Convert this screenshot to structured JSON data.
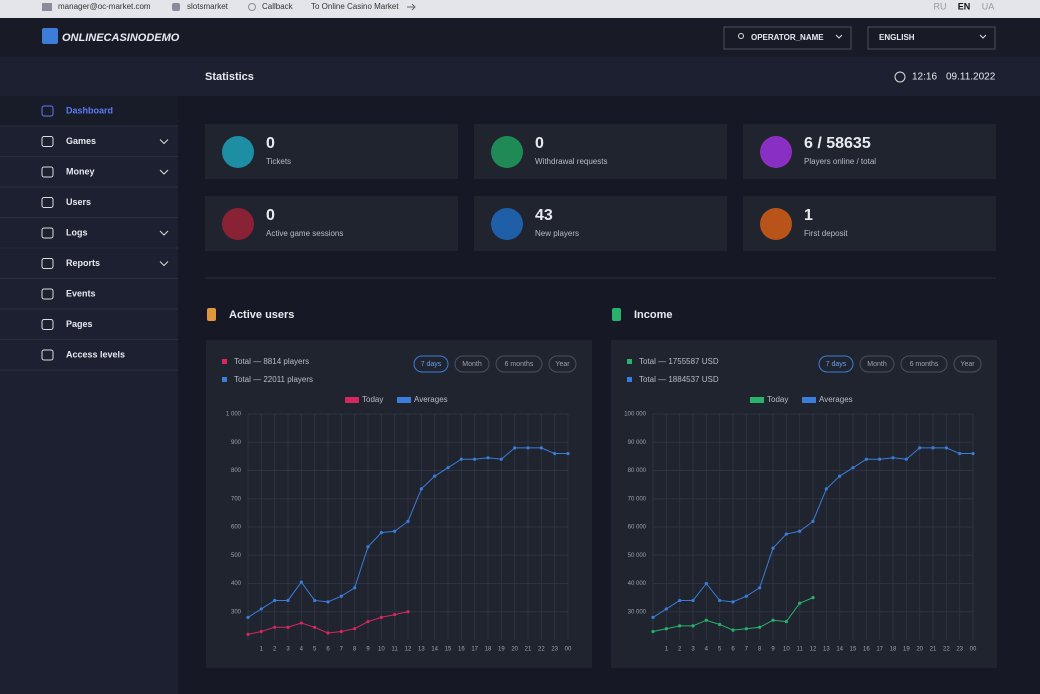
{
  "topbar": {
    "email": "manager@oc-market.com",
    "skype": "slotsmarket",
    "callback": "Callback",
    "market_link": "To Online Casino Market",
    "languages": [
      "RU",
      "EN",
      "UA"
    ]
  },
  "header": {
    "logo": "ONLINECASINODEMO",
    "operator": "OPERATOR_NAME",
    "language": "ENGLISH"
  },
  "sidebar": [
    {
      "label": "Dashboard",
      "active": true
    },
    {
      "label": "Games",
      "submenu": true
    },
    {
      "label": "Money",
      "submenu": true
    },
    {
      "label": "Users"
    },
    {
      "label": "Logs",
      "submenu": true
    },
    {
      "label": "Reports",
      "submenu": true
    },
    {
      "label": "Events"
    },
    {
      "label": "Pages"
    },
    {
      "label": "Access levels"
    }
  ],
  "page": {
    "title": "Statistics",
    "time": "12:16",
    "date": "09.11.2022"
  },
  "stats": [
    {
      "value": 0,
      "label": "Tickets",
      "color": "#1d8ea3"
    },
    {
      "value": 0,
      "label": "Withdrawal requests",
      "color": "#1f8a55"
    },
    {
      "value": "6 / 58635",
      "label": "Players online / total",
      "color": "#8a2fc4"
    },
    {
      "value": 0,
      "label": "Active game sessions",
      "color": "#8a2236"
    },
    {
      "value": 43,
      "label": "New players",
      "color": "#1f5fa8"
    },
    {
      "value": 1,
      "label": "First deposit",
      "color": "#b8541a"
    }
  ],
  "chart_data": [
    {
      "type": "line",
      "title": "Active users",
      "totals": [
        "Total — 8814 players",
        "Total — 22011 players"
      ],
      "filters": [
        "7 days",
        "Month",
        "6 months",
        "Year"
      ],
      "categories": [
        null,
        "1",
        "2",
        "3",
        "4",
        "5",
        "6",
        "7",
        "8",
        "9",
        "10",
        "11",
        "12",
        "13",
        "14",
        "15",
        "16",
        "17",
        "18",
        "19",
        "20",
        "21",
        "22",
        "23",
        "00"
      ],
      "series": [
        {
          "name": "Today",
          "color": "#d6285e",
          "values": [
            220,
            230,
            245,
            245,
            260,
            245,
            225,
            230,
            240,
            265,
            280,
            290,
            300,
            null,
            null,
            null,
            null,
            null,
            null,
            null,
            null,
            null,
            null,
            null,
            null
          ]
        },
        {
          "name": "Averages",
          "color": "#3b7dd8",
          "values": [
            280,
            310,
            340,
            340,
            405,
            340,
            335,
            355,
            385,
            530,
            580,
            585,
            620,
            735,
            780,
            810,
            840,
            840,
            845,
            840,
            880,
            880,
            880,
            860,
            860
          ]
        }
      ],
      "ylim": [
        200,
        1000
      ],
      "yticks": [
        300,
        400,
        500,
        600,
        700,
        800,
        900,
        {
          "value": 1000,
          "label": "1 000"
        }
      ],
      "grid": true
    },
    {
      "type": "line",
      "title": "Income",
      "totals": [
        "Total — 1755587 USD",
        "Total — 1884537 USD"
      ],
      "filters": [
        "7 days",
        "Month",
        "6 months",
        "Year"
      ],
      "categories": [
        null,
        "1",
        "2",
        "3",
        "4",
        "5",
        "6",
        "7",
        "8",
        "9",
        "10",
        "11",
        "12",
        "13",
        "14",
        "15",
        "16",
        "17",
        "18",
        "19",
        "20",
        "21",
        "22",
        "23",
        "00"
      ],
      "series": [
        {
          "name": "Today",
          "color": "#27b36a",
          "values": [
            23000,
            24000,
            25000,
            25000,
            27000,
            25500,
            23500,
            24000,
            24500,
            27000,
            26500,
            33000,
            35000,
            null,
            null,
            null,
            null,
            null,
            null,
            null,
            null,
            null,
            null,
            null,
            null
          ]
        },
        {
          "name": "Averages",
          "color": "#3b7dd8",
          "values": [
            28000,
            31000,
            34000,
            34000,
            40000,
            34000,
            33500,
            35500,
            38500,
            52500,
            57500,
            58500,
            62000,
            73500,
            78000,
            81000,
            84000,
            84000,
            84500,
            84000,
            88000,
            88000,
            88000,
            86000,
            86000
          ]
        }
      ],
      "ylim": [
        20000,
        100000
      ],
      "yticks": [
        {
          "value": 30000,
          "label": "30 000"
        },
        {
          "value": 40000,
          "label": "40 000"
        },
        {
          "value": 50000,
          "label": "50 000"
        },
        {
          "value": 60000,
          "label": "60 000"
        },
        {
          "value": 70000,
          "label": "70 000"
        },
        {
          "value": 80000,
          "label": "80 000"
        },
        {
          "value": 90000,
          "label": "90 000"
        },
        {
          "value": 100000,
          "label": "100 000"
        }
      ],
      "grid": true
    }
  ]
}
